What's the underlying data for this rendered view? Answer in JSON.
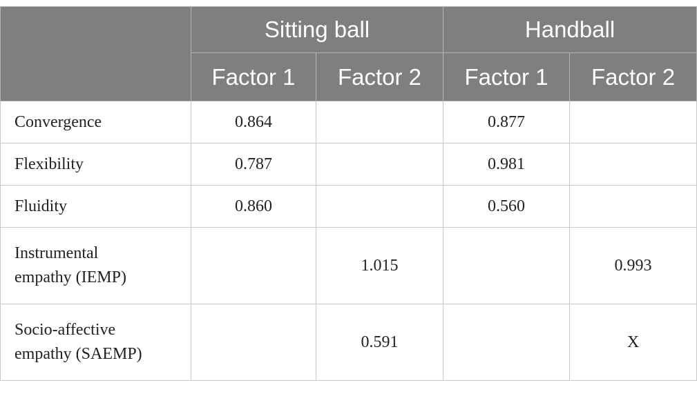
{
  "header": {
    "groups": [
      "Sitting ball",
      "Handball"
    ],
    "factors": [
      "Factor 1",
      "Factor 2",
      "Factor 1",
      "Factor 2"
    ]
  },
  "table": {
    "rows": [
      {
        "label": "Convergence",
        "cells": [
          "0.864",
          null,
          "0.877",
          null
        ]
      },
      {
        "label": "Flexibility",
        "cells": [
          "0.787",
          null,
          "0.981",
          null
        ]
      },
      {
        "label": "Fluidity",
        "cells": [
          "0.860",
          null,
          "0.560",
          null
        ]
      },
      {
        "label": "Instrumental empathy (IEMP)",
        "cells": [
          null,
          "1.015",
          null,
          "0.993"
        ]
      },
      {
        "label": "Socio-affective empathy (SAEMP)",
        "cells": [
          null,
          "0.591",
          null,
          "X"
        ]
      }
    ]
  }
}
